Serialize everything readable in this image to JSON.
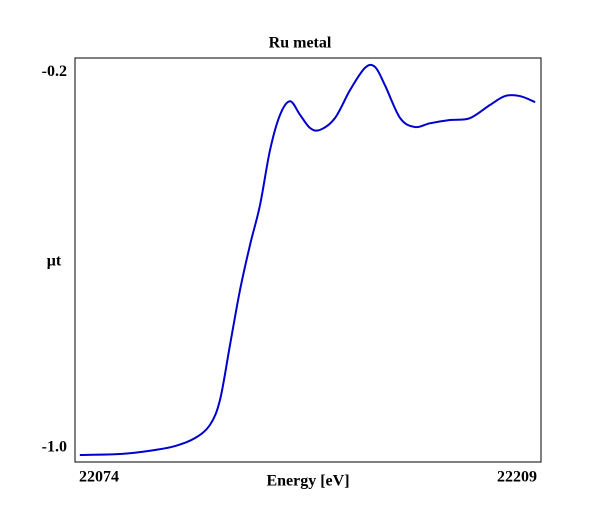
{
  "chart_data": {
    "type": "line",
    "title": "Ru metal",
    "x_label": "Energy [eV]",
    "y_label": "μt",
    "x": [
      22075.4,
      22087,
      22095.7,
      22103,
      22108.8,
      22113.1,
      22116,
      22118.9,
      22121.8,
      22124.7,
      22127.6,
      22130.5,
      22133.4,
      22136.3,
      22139.2,
      22142.1,
      22145,
      22149.3,
      22153.7,
      22158,
      22160.9,
      22163.8,
      22168.2,
      22172.5,
      22176.8,
      22182.6,
      22188.4,
      22194.2,
      22198.6,
      22202.9,
      22207.3
    ],
    "series": [
      {
        "name": "Ru metal",
        "color": "#0000cc",
        "values": [
          -1.015,
          -1.013,
          -1.006,
          -0.996,
          -0.979,
          -0.951,
          -0.898,
          -0.781,
          -0.664,
          -0.568,
          -0.483,
          -0.366,
          -0.291,
          -0.262,
          -0.291,
          -0.319,
          -0.323,
          -0.298,
          -0.238,
          -0.191,
          -0.189,
          -0.228,
          -0.298,
          -0.317,
          -0.309,
          -0.302,
          -0.298,
          -0.27,
          -0.251,
          -0.251,
          -0.264
        ]
      }
    ],
    "xlim": [
      22074,
      22209
    ],
    "xticks": [
      22074,
      22209
    ],
    "ylim": [
      -1.03,
      -0.17
    ],
    "yticks": [
      {
        "value": -1,
        "label": "-1.0"
      },
      -0.2
    ]
  }
}
